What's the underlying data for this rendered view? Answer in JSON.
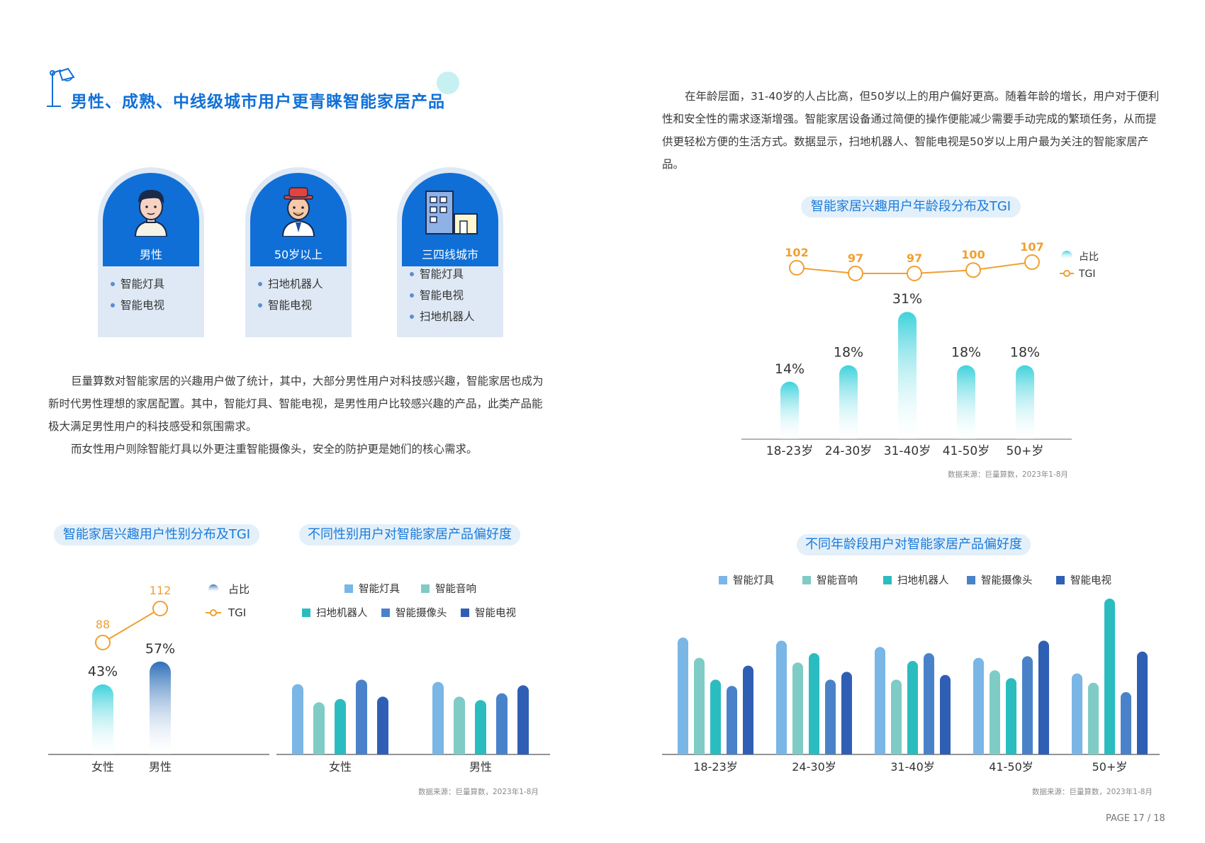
{
  "page": {
    "title": "男性、成熟、中线级城市用户更青睐智能家居产品",
    "page_number": "PAGE 17 / 18"
  },
  "colors": {
    "brand": "#1170d8",
    "tgi": "#f0a030",
    "teal": "#3fd2dc",
    "pill_bg": "#e3f0fa"
  },
  "cards": [
    {
      "label": "男性",
      "icon": "male-user-icon",
      "items": [
        "智能灯具",
        "智能电视"
      ]
    },
    {
      "label": "50岁以上",
      "icon": "senior-user-icon",
      "items": [
        "扫地机器人",
        "智能电视"
      ]
    },
    {
      "label": "三四线城市",
      "icon": "city-building-icon",
      "items": [
        "智能灯具",
        "智能电视",
        "扫地机器人"
      ]
    }
  ],
  "left_text": {
    "p1": "巨量算数对智能家居的兴趣用户做了统计，其中，大部分男性用户对科技感兴趣，智能家居也成为新时代男性理想的家居配置。其中，智能灯具、智能电视，是男性用户比较感兴趣的产品，此类产品能极大满足男性用户的科技感受和氛围需求。",
    "p2": "而女性用户则除智能灯具以外更注重智能摄像头，安全的防护更是她们的核心需求。"
  },
  "right_text": {
    "p1": "在年龄层面，31-40岁的人占比高，但50岁以上的用户偏好更高。随着年龄的增长，用户对于便利性和安全性的需求逐渐增强。智能家居设备通过简便的操作便能减少需要手动完成的繁琐任务，从而提供更轻松方便的生活方式。数据显示，扫地机器人、智能电视是50岁以上用户最为关注的智能家居产品。"
  },
  "source_text": "数据来源：巨量算数，2023年1-8月",
  "chart_data": [
    {
      "id": "age",
      "type": "bar",
      "title": "智能家居兴趣用户年龄段分布及TGI",
      "categories": [
        "18-23岁",
        "24-30岁",
        "31-40岁",
        "41-50岁",
        "50+岁"
      ],
      "series": [
        {
          "name": "占比",
          "values": [
            14,
            18,
            31,
            18,
            18
          ],
          "labels": [
            "14%",
            "18%",
            "31%",
            "18%",
            "18%"
          ]
        },
        {
          "name": "TGI",
          "type": "line",
          "values": [
            102,
            97,
            97,
            100,
            107
          ]
        }
      ],
      "legend": "top-right"
    },
    {
      "id": "gender",
      "type": "bar",
      "title": "智能家居兴趣用户性别分布及TGI",
      "categories": [
        "女性",
        "男性"
      ],
      "series": [
        {
          "name": "占比",
          "values": [
            43,
            57
          ],
          "labels": [
            "43%",
            "57%"
          ]
        },
        {
          "name": "TGI",
          "type": "line",
          "values": [
            88,
            112
          ]
        }
      ],
      "legend": "top-right"
    },
    {
      "id": "gender_pref",
      "type": "bar",
      "title": "不同性别用户对智能家居产品偏好度",
      "categories": [
        "女性",
        "男性"
      ],
      "series": [
        {
          "name": "智能灯具",
          "color": "#7ab6e6",
          "values": [
            0.62,
            0.64
          ]
        },
        {
          "name": "智能音响",
          "color": "#7fcbc6",
          "values": [
            0.46,
            0.51
          ]
        },
        {
          "name": "扫地机器人",
          "color": "#2bbcc0",
          "values": [
            0.49,
            0.48
          ]
        },
        {
          "name": "智能摄像头",
          "color": "#4a82c9",
          "values": [
            0.66,
            0.54
          ]
        },
        {
          "name": "智能电视",
          "color": "#2f5fb5",
          "values": [
            0.51,
            0.61
          ]
        }
      ],
      "legend": "top"
    },
    {
      "id": "age_pref",
      "type": "bar",
      "title": "不同年龄段用户对智能家居产品偏好度",
      "categories": [
        "18-23岁",
        "24-30岁",
        "31-40岁",
        "41-50岁",
        "50+岁"
      ],
      "series": [
        {
          "name": "智能灯具",
          "color": "#7ab6e6",
          "values": [
            0.75,
            0.73,
            0.69,
            0.62,
            0.52
          ]
        },
        {
          "name": "智能音响",
          "color": "#7fcbc6",
          "values": [
            0.62,
            0.59,
            0.48,
            0.54,
            0.46
          ]
        },
        {
          "name": "扫地机器人",
          "color": "#2bbcc0",
          "values": [
            0.48,
            0.65,
            0.6,
            0.49,
            1.0
          ]
        },
        {
          "name": "智能摄像头",
          "color": "#4a82c9",
          "values": [
            0.44,
            0.48,
            0.65,
            0.63,
            0.4
          ]
        },
        {
          "name": "智能电视",
          "color": "#2f5fb5",
          "values": [
            0.57,
            0.53,
            0.51,
            0.73,
            0.66
          ]
        }
      ],
      "legend": "top"
    }
  ]
}
